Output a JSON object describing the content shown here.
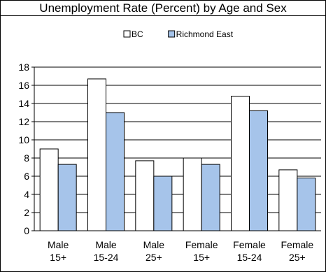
{
  "chart_data": {
    "type": "bar",
    "title": "Unemployment Rate (Percent) by Age and Sex",
    "xlabel": "",
    "ylabel": "",
    "categories": [
      [
        "Male",
        "15+"
      ],
      [
        "Male",
        "15-24"
      ],
      [
        "Male",
        "25+"
      ],
      [
        "Female",
        "15+"
      ],
      [
        "Female",
        "15-24"
      ],
      [
        "Female",
        "25+"
      ]
    ],
    "series": [
      {
        "name": "BC",
        "values": [
          9.0,
          16.7,
          7.7,
          8.0,
          14.8,
          6.7
        ],
        "color": "#ffffff"
      },
      {
        "name": "Richmond East",
        "values": [
          7.3,
          13.0,
          6.0,
          7.3,
          13.2,
          5.8
        ],
        "color": "#a6c4ea"
      }
    ],
    "ylim": [
      0,
      18
    ],
    "yticks": [
      0,
      2,
      4,
      6,
      8,
      10,
      12,
      14,
      16,
      18
    ],
    "grid": true,
    "legend": "top"
  }
}
